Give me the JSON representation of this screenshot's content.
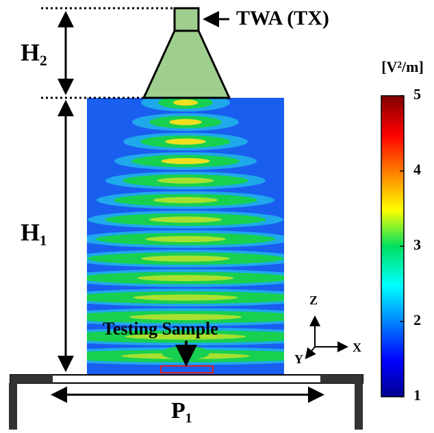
{
  "labels": {
    "antenna": "TWA (TX)",
    "h2": "H₂",
    "h1": "H₁",
    "p1": "P₁",
    "sample": "Testing Sample",
    "axis_z": "Z",
    "axis_x": "X",
    "axis_y": "Y"
  },
  "colorbar": {
    "unit": "[V²/m]",
    "ticks": [
      1,
      2,
      3,
      4,
      5
    ]
  }
}
